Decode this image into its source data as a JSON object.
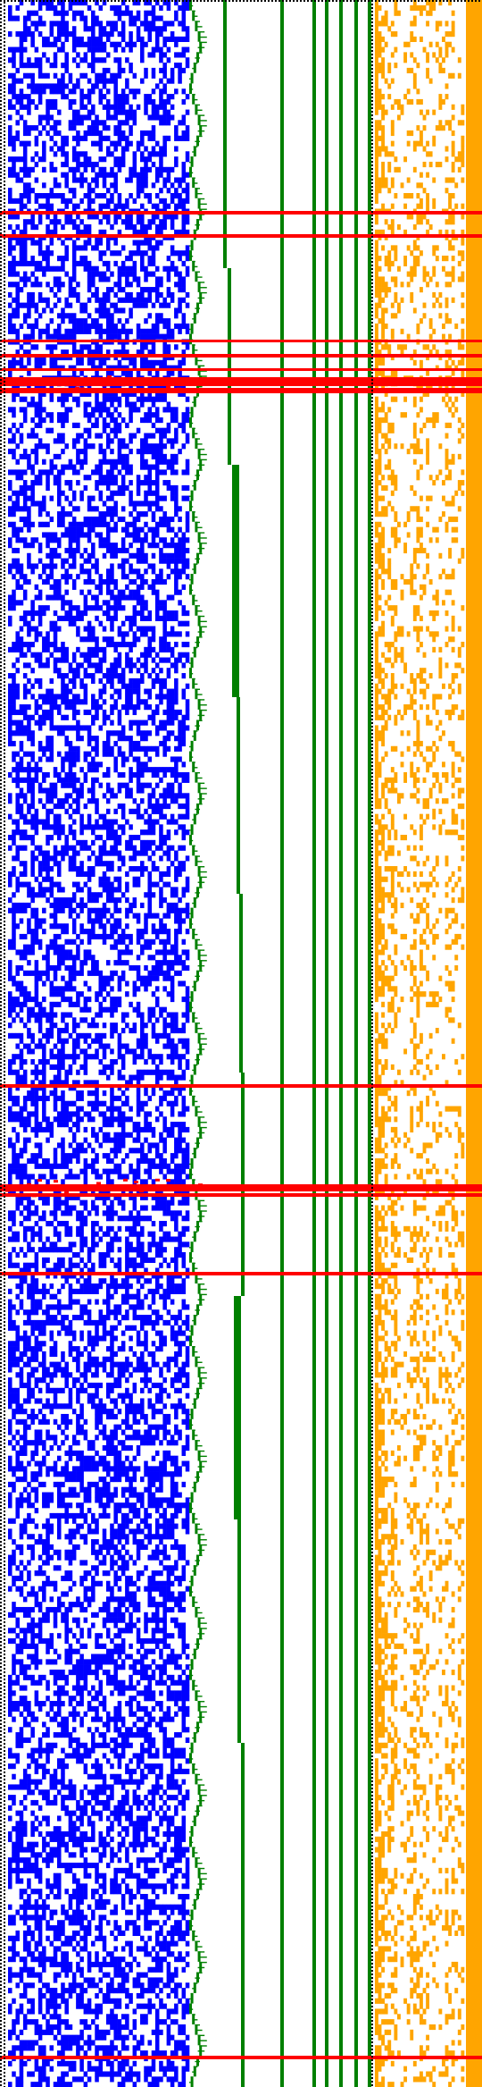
{
  "colors": {
    "background": "#ffffff",
    "blue_cells": "#0000ff",
    "green_lines": "#008000",
    "orange_cells": "#ffa500",
    "red_lines": "#ff0000",
    "dotted_border": "#000000"
  },
  "grid": {
    "rows": 400,
    "blue_columns": 48,
    "orange_columns": 28
  },
  "green_vertical_lines": 7,
  "red_horizontal_line_groups": 9
}
